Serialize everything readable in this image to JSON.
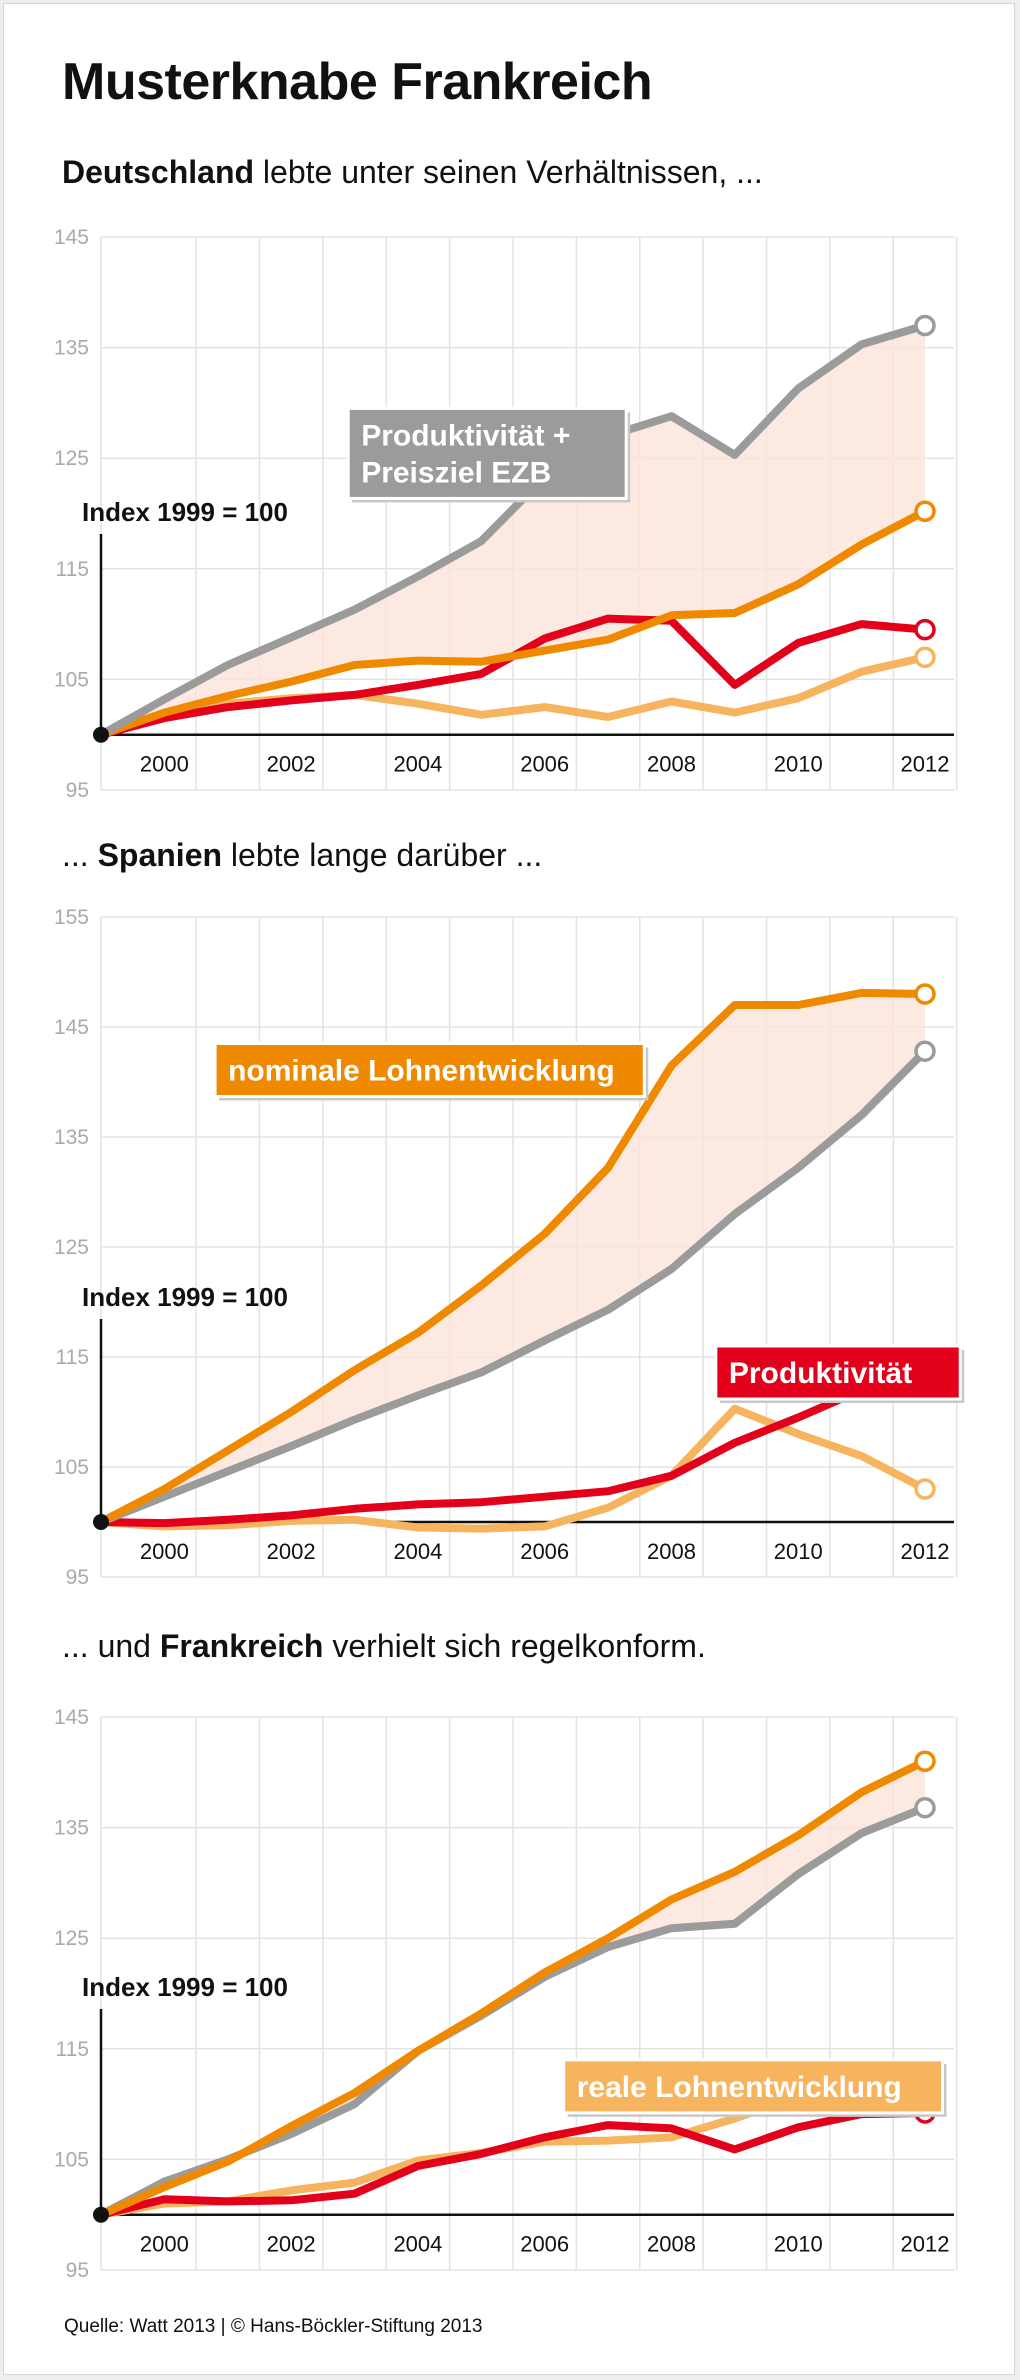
{
  "header": {
    "title": "Musterknabe Frankreich"
  },
  "sections": [
    {
      "pre": "",
      "bold": "Deutschland",
      "post": " lebte unter seinen Verhältnissen, ..."
    },
    {
      "pre": "... ",
      "bold": "Spanien",
      "post": " lebte lange darüber ..."
    },
    {
      "pre": "... und ",
      "bold": "Frankreich",
      "post": " verhielt sich regelkonform."
    }
  ],
  "footer": {
    "source": "Quelle: Watt 2013 | © Hans-Böckler-Stiftung 2013"
  },
  "colors": {
    "productivity_plus_target": "#9b9b9b",
    "nominal_wages": "#ef8a00",
    "productivity": "#e2001a",
    "real_wages": "#f7b45f",
    "gap_fill": "#fbe4d9",
    "grid": "#e3e3e3",
    "tick_text": "#aaaaaa"
  },
  "chart_data": [
    {
      "type": "line",
      "title": "Deutschland",
      "ylabel": "Index 1999 = 100",
      "ylim": [
        95,
        145
      ],
      "yticks": [
        95,
        105,
        115,
        125,
        135,
        145
      ],
      "xticks": [
        2000,
        2002,
        2004,
        2006,
        2008,
        2010,
        2012
      ],
      "x": [
        1999,
        2000,
        2001,
        2002,
        2003,
        2004,
        2005,
        2006,
        2007,
        2008,
        2009,
        2010,
        2011,
        2012
      ],
      "shaded_between": [
        "Produktivität + Preisziel EZB",
        "nominale Lohnentwicklung"
      ],
      "series": [
        {
          "name": "Produktivität + Preisziel EZB",
          "color_key": "productivity_plus_target",
          "values": [
            100,
            103.2,
            106.3,
            108.8,
            111.3,
            114.3,
            117.5,
            123.3,
            127,
            128.8,
            125.3,
            131.3,
            135.3,
            137
          ]
        },
        {
          "name": "nominale Lohnentwicklung",
          "color_key": "nominal_wages",
          "values": [
            100,
            102,
            103.5,
            104.8,
            106.3,
            106.7,
            106.6,
            107.6,
            108.6,
            110.8,
            111,
            113.6,
            117.2,
            120.2
          ]
        },
        {
          "name": "Produktivität",
          "color_key": "productivity",
          "values": [
            100,
            101.5,
            102.5,
            103.1,
            103.6,
            104.5,
            105.5,
            108.7,
            110.5,
            110.3,
            104.5,
            108.3,
            110,
            109.5
          ]
        },
        {
          "name": "reale Lohnentwicklung",
          "color_key": "real_wages",
          "values": [
            100,
            101.8,
            102.8,
            103.3,
            103.6,
            102.8,
            101.8,
            102.5,
            101.6,
            103,
            102,
            103.3,
            105.7,
            107
          ]
        }
      ],
      "annotations": [
        {
          "text": "Produktivität +\nPreisziel EZB",
          "series": "Produktivität + Preisziel EZB",
          "at": [
            2002.9,
            129.5
          ]
        }
      ]
    },
    {
      "type": "line",
      "title": "Spanien",
      "ylabel": "Index 1999 = 100",
      "ylim": [
        95,
        155
      ],
      "yticks": [
        95,
        105,
        115,
        125,
        135,
        145,
        155
      ],
      "xticks": [
        2000,
        2002,
        2004,
        2006,
        2008,
        2010,
        2012
      ],
      "x": [
        1999,
        2000,
        2001,
        2002,
        2003,
        2004,
        2005,
        2006,
        2007,
        2008,
        2009,
        2010,
        2011,
        2012
      ],
      "shaded_between": [
        "nominale Lohnentwicklung",
        "Produktivität + Preisziel EZB"
      ],
      "series": [
        {
          "name": "nominale Lohnentwicklung",
          "color_key": "nominal_wages",
          "values": [
            100,
            103,
            106.5,
            110,
            113.8,
            117.2,
            121.5,
            126.2,
            132.2,
            141.5,
            147,
            147,
            148.1,
            148
          ]
        },
        {
          "name": "Produktivität + Preisziel EZB",
          "color_key": "productivity_plus_target",
          "values": [
            100,
            102.3,
            104.6,
            106.9,
            109.3,
            111.5,
            113.6,
            116.5,
            119.3,
            123,
            128,
            132.2,
            137,
            142.8
          ]
        },
        {
          "name": "Produktivität",
          "color_key": "productivity",
          "values": [
            100,
            99.9,
            100.2,
            100.6,
            101.2,
            101.6,
            101.8,
            102.3,
            102.8,
            104.2,
            107.2,
            109.5,
            112,
            115
          ]
        },
        {
          "name": "reale Lohnentwicklung",
          "color_key": "real_wages",
          "values": [
            100,
            99.6,
            99.7,
            100.1,
            100.2,
            99.5,
            99.4,
            99.6,
            101.3,
            104.2,
            110.3,
            108,
            106,
            103
          ]
        }
      ],
      "annotations": [
        {
          "text": "nominale Lohnentwicklung",
          "series": "nominale Lohnentwicklung",
          "at": [
            2000.8,
            143.5
          ]
        },
        {
          "text": "Produktivität",
          "series": "Produktivität",
          "at": [
            2008.7,
            116
          ]
        }
      ]
    },
    {
      "type": "line",
      "title": "Frankreich",
      "ylabel": "Index 1999 = 100",
      "ylim": [
        95,
        145
      ],
      "yticks": [
        95,
        105,
        115,
        125,
        135,
        145
      ],
      "xticks": [
        2000,
        2002,
        2004,
        2006,
        2008,
        2010,
        2012
      ],
      "x": [
        1999,
        2000,
        2001,
        2002,
        2003,
        2004,
        2005,
        2006,
        2007,
        2008,
        2009,
        2010,
        2011,
        2012
      ],
      "shaded_between": [
        "nominale Lohnentwicklung",
        "Produktivität + Preisziel EZB"
      ],
      "series": [
        {
          "name": "nominale Lohnentwicklung",
          "color_key": "nominal_wages",
          "values": [
            100,
            102.5,
            104.8,
            108,
            111,
            114.8,
            118.2,
            121.9,
            125,
            128.5,
            131,
            134.3,
            138.2,
            141
          ]
        },
        {
          "name": "Produktivität + Preisziel EZB",
          "color_key": "productivity_plus_target",
          "values": [
            100,
            103,
            105,
            107.3,
            110,
            114.8,
            118,
            121.5,
            124.2,
            125.9,
            126.3,
            130.8,
            134.5,
            136.8
          ]
        },
        {
          "name": "Produktivität",
          "color_key": "productivity",
          "values": [
            100,
            101.4,
            101.2,
            101.3,
            101.9,
            104.4,
            105.5,
            107,
            108.1,
            107.8,
            105.9,
            107.9,
            109.1,
            109.2
          ]
        },
        {
          "name": "reale Lohnentwicklung",
          "color_key": "real_wages",
          "values": [
            100,
            101,
            101.2,
            102.2,
            102.9,
            104.9,
            105.6,
            106.6,
            106.7,
            107,
            108.7,
            110.7,
            111.2,
            112
          ]
        }
      ],
      "annotations": [
        {
          "text": "reale Lohnentwicklung",
          "series": "reale Lohnentwicklung",
          "at": [
            2006.3,
            114
          ]
        }
      ]
    }
  ]
}
